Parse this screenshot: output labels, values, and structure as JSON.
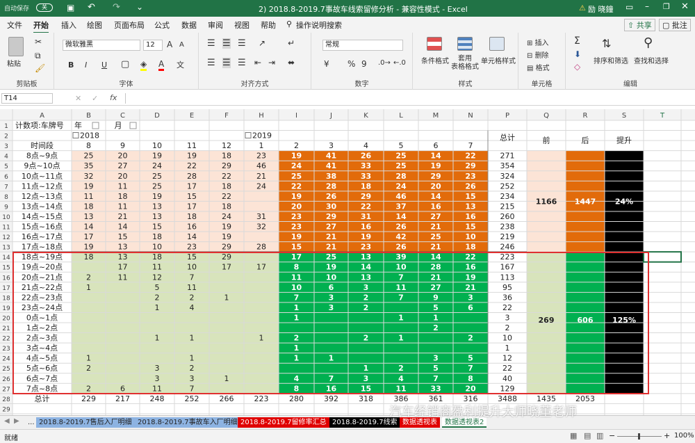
{
  "titlebar": {
    "autosave": "自动保存",
    "autosave_state": "关",
    "title": "2) 2018.8-2019.7事故车线索留修分析 - 兼容性模式 - Excel",
    "warning": "⚠",
    "user": "励 晓鐘"
  },
  "tabs": [
    "文件",
    "开始",
    "插入",
    "绘图",
    "页面布局",
    "公式",
    "数据",
    "审阅",
    "视图",
    "帮助",
    "操作说明搜索"
  ],
  "share": "共享",
  "comment": "批注",
  "ribbon": {
    "clipboard": {
      "label": "剪贴板",
      "paste": "粘贴"
    },
    "font": {
      "label": "字体",
      "name": "微软雅黑",
      "size": "12",
      "bold": "B",
      "italic": "I",
      "underline": "U"
    },
    "align": {
      "label": "对齐方式"
    },
    "number": {
      "label": "数字",
      "format": "常规",
      "percent": "%",
      "comma": "9"
    },
    "styles": {
      "label": "样式",
      "cond": "条件格式",
      "table": "套用\n表格格式",
      "cell": "单元格样式"
    },
    "cells": {
      "label": "单元格",
      "insert": "插入",
      "delete": "删除",
      "format": "格式"
    },
    "edit": {
      "label": "编辑",
      "sum": "Σ",
      "sort": "排序和筛选",
      "find": "查找和选择"
    }
  },
  "namebox": "T14",
  "fx": "fx",
  "columns": [
    "A",
    "B",
    "C",
    "D",
    "E",
    "F",
    "H",
    "I",
    "J",
    "K",
    "L",
    "M",
    "N",
    "P",
    "Q",
    "R",
    "S",
    "T"
  ],
  "pivot": {
    "label_a1": "计数项:车牌号",
    "year": "年",
    "month": "月",
    "y2018": "2018",
    "y2019": "2019",
    "total_label": "总计",
    "slot_label": "时间段",
    "months": [
      "8",
      "9",
      "10",
      "11",
      "12",
      "1",
      "2",
      "3",
      "4",
      "5",
      "6",
      "7"
    ],
    "rows": [
      {
        "n": "4",
        "slot": "8点~9点",
        "v": [
          "25",
          "20",
          "19",
          "19",
          "18",
          "23",
          "19",
          "41",
          "26",
          "25",
          "14",
          "22"
        ],
        "t": "271"
      },
      {
        "n": "5",
        "slot": "9点~10点",
        "v": [
          "35",
          "27",
          "24",
          "22",
          "29",
          "46",
          "24",
          "41",
          "33",
          "25",
          "19",
          "29"
        ],
        "t": "354"
      },
      {
        "n": "6",
        "slot": "10点~11点",
        "v": [
          "32",
          "20",
          "25",
          "28",
          "22",
          "21",
          "25",
          "38",
          "33",
          "28",
          "29",
          "23"
        ],
        "t": "324"
      },
      {
        "n": "7",
        "slot": "11点~12点",
        "v": [
          "19",
          "11",
          "25",
          "17",
          "18",
          "24",
          "22",
          "28",
          "18",
          "24",
          "20",
          "26"
        ],
        "t": "252"
      },
      {
        "n": "8",
        "slot": "12点~13点",
        "v": [
          "11",
          "18",
          "19",
          "15",
          "22",
          "",
          "19",
          "26",
          "29",
          "46",
          "14",
          "15"
        ],
        "t": "234"
      },
      {
        "n": "9",
        "slot": "13点~14点",
        "v": [
          "18",
          "11",
          "13",
          "17",
          "18",
          "",
          "20",
          "30",
          "22",
          "37",
          "16",
          "13"
        ],
        "t": "215"
      },
      {
        "n": "10",
        "slot": "14点~15点",
        "v": [
          "13",
          "21",
          "13",
          "18",
          "24",
          "31",
          "23",
          "29",
          "31",
          "14",
          "27",
          "16"
        ],
        "t": "260"
      },
      {
        "n": "11",
        "slot": "15点~16点",
        "v": [
          "14",
          "14",
          "15",
          "16",
          "19",
          "32",
          "23",
          "27",
          "16",
          "26",
          "21",
          "15"
        ],
        "t": "238"
      },
      {
        "n": "12",
        "slot": "16点~17点",
        "v": [
          "17",
          "15",
          "18",
          "14",
          "19",
          "",
          "19",
          "21",
          "19",
          "42",
          "25",
          "10"
        ],
        "t": "219"
      },
      {
        "n": "13",
        "slot": "17点~18点",
        "v": [
          "19",
          "13",
          "10",
          "23",
          "29",
          "28",
          "15",
          "21",
          "23",
          "26",
          "21",
          "18"
        ],
        "t": "246"
      },
      {
        "n": "14",
        "slot": "18点~19点",
        "v": [
          "18",
          "13",
          "18",
          "15",
          "29",
          "",
          "17",
          "25",
          "13",
          "39",
          "14",
          "22"
        ],
        "t": "223"
      },
      {
        "n": "15",
        "slot": "19点~20点",
        "v": [
          "",
          "17",
          "11",
          "10",
          "17",
          "17",
          "8",
          "19",
          "14",
          "10",
          "28",
          "16"
        ],
        "t": "167"
      },
      {
        "n": "16",
        "slot": "20点~21点",
        "v": [
          "2",
          "11",
          "12",
          "7",
          "",
          "",
          "11",
          "10",
          "13",
          "7",
          "21",
          "19"
        ],
        "t": "113"
      },
      {
        "n": "17",
        "slot": "21点~22点",
        "v": [
          "1",
          "",
          "5",
          "11",
          "",
          "",
          "10",
          "6",
          "3",
          "11",
          "27",
          "21"
        ],
        "t": "95"
      },
      {
        "n": "18",
        "slot": "22点~23点",
        "v": [
          "",
          "",
          "2",
          "2",
          "1",
          "",
          "7",
          "3",
          "2",
          "7",
          "9",
          "3"
        ],
        "t": "36"
      },
      {
        "n": "19",
        "slot": "23点~24点",
        "v": [
          "",
          "",
          "1",
          "4",
          "",
          "",
          "1",
          "3",
          "2",
          "",
          "5",
          "6"
        ],
        "t": "22"
      },
      {
        "n": "20",
        "slot": "0点~1点",
        "v": [
          "",
          "",
          "",
          "",
          "",
          "",
          "1",
          "",
          "",
          "1",
          "1",
          ""
        ],
        "t": "3"
      },
      {
        "n": "21",
        "slot": "1点~2点",
        "v": [
          "",
          "",
          "",
          "",
          "",
          "",
          "",
          "",
          "",
          "",
          "2",
          ""
        ],
        "t": "2"
      },
      {
        "n": "22",
        "slot": "2点~3点",
        "v": [
          "",
          "",
          "1",
          "1",
          "",
          "1",
          "2",
          "",
          "2",
          "1",
          "",
          "2"
        ],
        "t": "10"
      },
      {
        "n": "23",
        "slot": "3点~4点",
        "v": [
          "",
          "",
          "",
          "",
          "",
          "",
          "1",
          "",
          "",
          "",
          "",
          ""
        ],
        "t": "1"
      },
      {
        "n": "24",
        "slot": "4点~5点",
        "v": [
          "1",
          "",
          "",
          "1",
          "",
          "",
          "1",
          "1",
          "",
          "",
          "3",
          "5"
        ],
        "t": "12"
      },
      {
        "n": "25",
        "slot": "5点~6点",
        "v": [
          "2",
          "",
          "3",
          "2",
          "",
          "",
          "",
          "",
          "1",
          "2",
          "5",
          "7"
        ],
        "t": "22"
      },
      {
        "n": "26",
        "slot": "6点~7点",
        "v": [
          "",
          "",
          "3",
          "3",
          "1",
          "",
          "4",
          "7",
          "3",
          "4",
          "7",
          "8"
        ],
        "t": "40"
      },
      {
        "n": "27",
        "slot": "7点~8点",
        "v": [
          "2",
          "6",
          "11",
          "7",
          "",
          "",
          "8",
          "16",
          "15",
          "11",
          "33",
          "20"
        ],
        "t": "129"
      }
    ],
    "grand": {
      "label": "总计",
      "v": [
        "229",
        "217",
        "248",
        "252",
        "266",
        "223",
        "280",
        "392",
        "318",
        "386",
        "361",
        "316"
      ],
      "t": "3488",
      "q": "1435",
      "r": "2053"
    }
  },
  "summary": {
    "h_before": "前",
    "h_after": "后",
    "h_lift": "提升",
    "day_before": "1166",
    "day_after": "1447",
    "day_lift": "24%",
    "night_before": "269",
    "night_after": "606",
    "night_lift": "125%"
  },
  "sheet_tabs": [
    "...",
    "2018.8-2019.7售后入厂明细",
    "2018.8-2019.7事故车入厂明细",
    "2018.8-2019.7留修率汇总",
    "2018.8-2019.7线索",
    "数据透视表",
    "数据透视表2"
  ],
  "status": {
    "ready": "就绪",
    "zoom": "100%"
  },
  "watermark": "汽车经销商盈利提升大师晓董老师",
  "colors": {
    "excel_green": "#217346",
    "peach": "#fce4d6",
    "orange": "#e26b0a",
    "black": "#000000",
    "light_green": "#d8e4bc",
    "green": "#00b050",
    "red_border": "#e03030"
  }
}
